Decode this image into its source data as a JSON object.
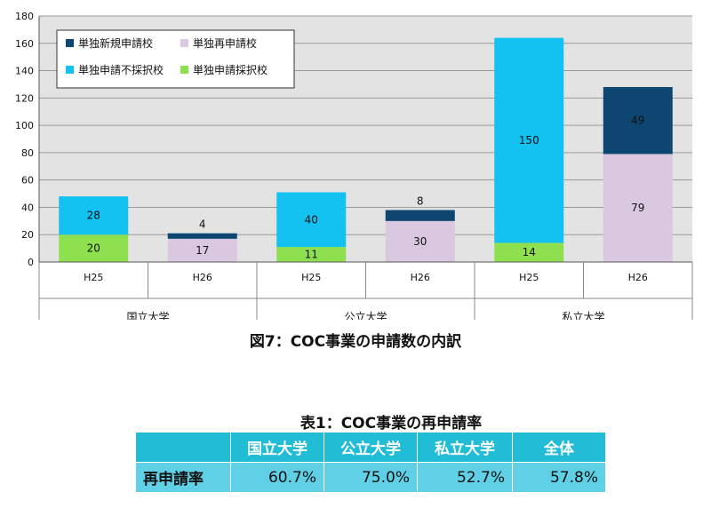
{
  "chart_data": {
    "type": "bar",
    "stacked": true,
    "ylim": [
      0,
      180
    ],
    "yticks": [
      0,
      20,
      40,
      60,
      80,
      100,
      120,
      140,
      160,
      180
    ],
    "grid": true,
    "legend_position": "top-left",
    "categories": [
      "H25",
      "H26",
      "H25",
      "H26",
      "H25",
      "H26"
    ],
    "groups": [
      {
        "label": "国立大学",
        "span": [
          0,
          1
        ]
      },
      {
        "label": "公立大学",
        "span": [
          2,
          3
        ]
      },
      {
        "label": "私立大学",
        "span": [
          4,
          5
        ]
      }
    ],
    "series": [
      {
        "name": "単独申請採択校",
        "color": "#8fe04f",
        "values": [
          20,
          0,
          11,
          0,
          14,
          0
        ]
      },
      {
        "name": "単独再申請校",
        "color": "#d9c8e0",
        "values": [
          0,
          17,
          0,
          30,
          0,
          79
        ]
      },
      {
        "name": "単独申請不採択校",
        "color": "#14c2f2",
        "values": [
          28,
          0,
          40,
          0,
          150,
          0
        ]
      },
      {
        "name": "単独新規申請校",
        "color": "#0d4670",
        "values": [
          0,
          4,
          0,
          8,
          0,
          49
        ]
      }
    ],
    "legend_order": [
      "単独新規申請校",
      "単独再申請校",
      "単独申請不採択校",
      "単独申請採択校"
    ]
  },
  "figure_caption": "図7：COC事業の申請数の内訳",
  "table": {
    "caption": "表1：COC事業の再申請率",
    "headers": [
      "",
      "国立大学",
      "公立大学",
      "私立大学",
      "全体"
    ],
    "row_label": "再申請率",
    "values": [
      "60.7%",
      "75.0%",
      "52.7%",
      "57.8%"
    ]
  }
}
